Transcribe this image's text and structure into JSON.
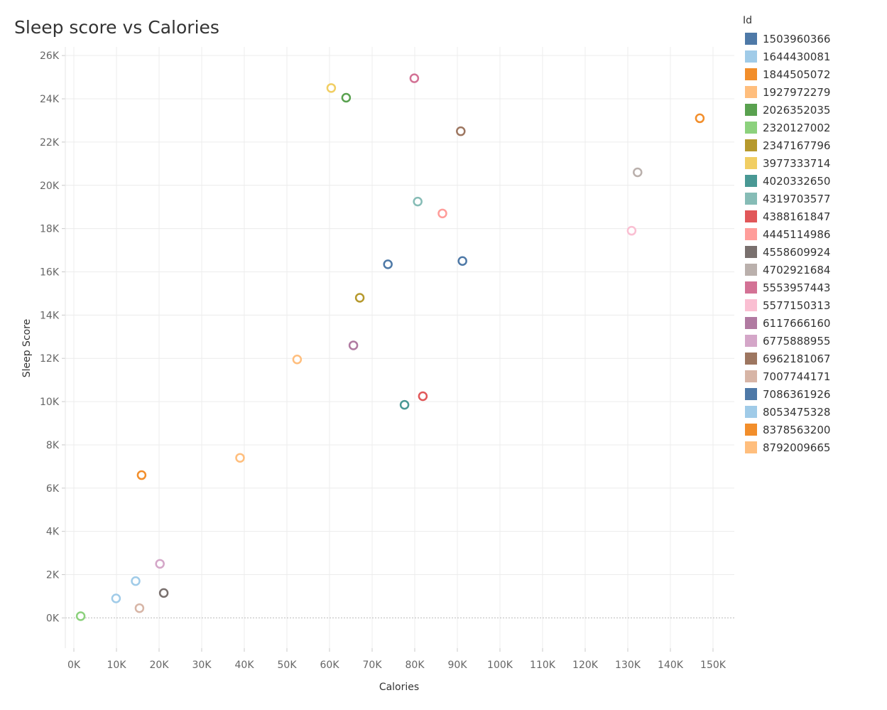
{
  "chart_data": {
    "type": "scatter",
    "title": "Sleep score vs Calories",
    "xlabel": "Calories",
    "ylabel": "Sleep Score",
    "xlim": [
      -2000,
      155000
    ],
    "ylim": [
      -1400,
      26400
    ],
    "x_ticks": [
      0,
      10000,
      20000,
      30000,
      40000,
      50000,
      60000,
      70000,
      80000,
      90000,
      100000,
      110000,
      120000,
      130000,
      140000,
      150000
    ],
    "x_tick_labels": [
      "0K",
      "10K",
      "20K",
      "30K",
      "40K",
      "50K",
      "60K",
      "70K",
      "80K",
      "90K",
      "100K",
      "110K",
      "120K",
      "130K",
      "140K",
      "150K"
    ],
    "y_ticks": [
      0,
      2000,
      4000,
      6000,
      8000,
      10000,
      12000,
      14000,
      16000,
      18000,
      20000,
      22000,
      24000,
      26000
    ],
    "y_tick_labels": [
      "0K",
      "2K",
      "4K",
      "6K",
      "8K",
      "10K",
      "12K",
      "14K",
      "16K",
      "18K",
      "20K",
      "22K",
      "24K",
      "26K"
    ],
    "grid": true,
    "legend_position": "right",
    "legend_title": "Id",
    "series": [
      {
        "name": "1503960366",
        "color": "#4e79a7",
        "x": 91200,
        "y": 16500
      },
      {
        "name": "1644430081",
        "color": "#a0cbe8",
        "x": 9900,
        "y": 900
      },
      {
        "name": "1844505072",
        "color": "#f28e2b",
        "x": 15900,
        "y": 6600
      },
      {
        "name": "1927972279",
        "color": "#ffbe7d",
        "x": 39000,
        "y": 7400
      },
      {
        "name": "2026352035",
        "color": "#59a14f",
        "x": 63900,
        "y": 24050
      },
      {
        "name": "2320127002",
        "color": "#8cd17d",
        "x": 1600,
        "y": 80
      },
      {
        "name": "2347167796",
        "color": "#b6992d",
        "x": 67100,
        "y": 14800
      },
      {
        "name": "3977333714",
        "color": "#f1ce63",
        "x": 60400,
        "y": 24500
      },
      {
        "name": "4020332650",
        "color": "#499894",
        "x": 77600,
        "y": 9850
      },
      {
        "name": "4319703577",
        "color": "#86bcb6",
        "x": 80700,
        "y": 19250
      },
      {
        "name": "4388161847",
        "color": "#e15759",
        "x": 81900,
        "y": 10250
      },
      {
        "name": "4445114986",
        "color": "#ff9d9a",
        "x": 86500,
        "y": 18700
      },
      {
        "name": "4558609924",
        "color": "#79706e",
        "x": 21100,
        "y": 1150
      },
      {
        "name": "4702921684",
        "color": "#bab0ac",
        "x": 132300,
        "y": 20600
      },
      {
        "name": "5553957443",
        "color": "#d37295",
        "x": 79900,
        "y": 24950
      },
      {
        "name": "5577150313",
        "color": "#fabfd2",
        "x": 130900,
        "y": 17900
      },
      {
        "name": "6117666160",
        "color": "#b07aa1",
        "x": 65600,
        "y": 12600
      },
      {
        "name": "6775888955",
        "color": "#d4a6c8",
        "x": 20200,
        "y": 2500
      },
      {
        "name": "6962181067",
        "color": "#9d7660",
        "x": 90800,
        "y": 22500
      },
      {
        "name": "7007744171",
        "color": "#d7b5a6",
        "x": 15400,
        "y": 450
      },
      {
        "name": "7086361926",
        "color": "#4e79a7",
        "x": 73700,
        "y": 16350
      },
      {
        "name": "8053475328",
        "color": "#a0cbe8",
        "x": 14500,
        "y": 1700
      },
      {
        "name": "8378563200",
        "color": "#f28e2b",
        "x": 146900,
        "y": 23100
      },
      {
        "name": "8792009665",
        "color": "#ffbe7d",
        "x": 52400,
        "y": 11950
      }
    ]
  }
}
